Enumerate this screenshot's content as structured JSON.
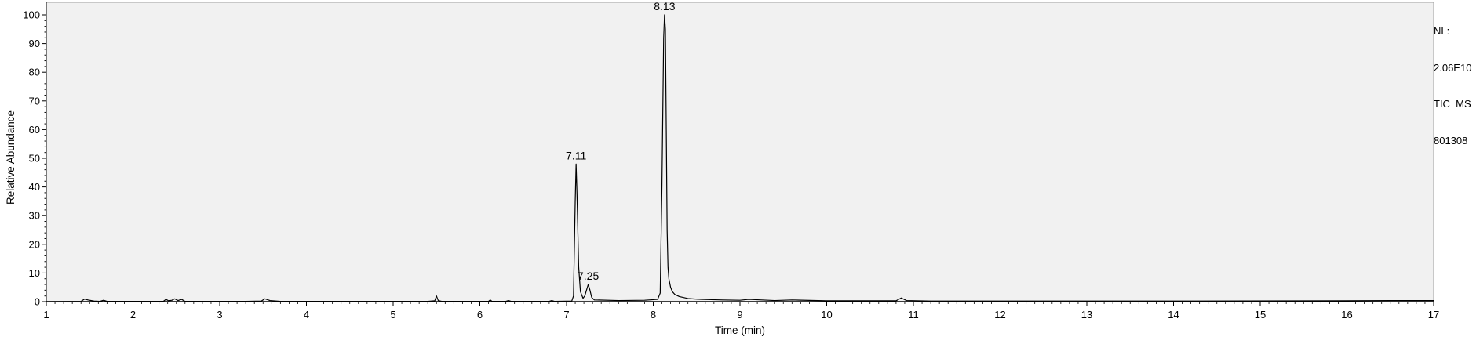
{
  "chart_data": {
    "type": "line",
    "xlabel": "Time (min)",
    "ylabel": "Relative Abundance",
    "xlim": [
      1,
      17
    ],
    "ylim": [
      0,
      100
    ],
    "x_ticks": [
      1,
      2,
      3,
      4,
      5,
      6,
      7,
      8,
      9,
      10,
      11,
      12,
      13,
      14,
      15,
      16,
      17
    ],
    "y_ticks": [
      0,
      10,
      20,
      30,
      40,
      50,
      60,
      70,
      80,
      90,
      100
    ],
    "grid": false,
    "background": "#f1f1f1",
    "line_color": "#000000",
    "peak_labels": [
      {
        "text": "7.11",
        "x": 7.11,
        "y": 48
      },
      {
        "text": "7.25",
        "x": 7.25,
        "y": 6
      },
      {
        "text": "8.13",
        "x": 8.13,
        "y": 100
      }
    ],
    "series": [
      {
        "x": [
          1.0,
          1.4,
          1.44,
          1.48,
          1.55,
          1.62,
          1.66,
          1.7,
          2.0,
          2.35,
          2.38,
          2.41,
          2.45,
          2.48,
          2.52,
          2.56,
          2.6,
          3.3,
          3.48,
          3.52,
          3.58,
          3.7,
          5.4,
          5.48,
          5.5,
          5.52,
          5.56,
          6.1,
          6.12,
          6.14,
          6.3,
          6.33,
          6.36,
          6.8,
          6.83,
          6.86,
          7.06,
          7.08,
          7.1,
          7.11,
          7.12,
          7.14,
          7.16,
          7.19,
          7.21,
          7.23,
          7.25,
          7.27,
          7.29,
          7.32,
          7.6,
          7.9,
          8.05,
          8.08,
          8.1,
          8.12,
          8.13,
          8.14,
          8.15,
          8.16,
          8.17,
          8.18,
          8.2,
          8.22,
          8.25,
          8.3,
          8.4,
          8.55,
          8.8,
          9.0,
          9.1,
          9.4,
          9.6,
          10.0,
          10.8,
          10.86,
          10.92,
          11.2,
          12.0,
          14.0,
          16.0,
          16.5,
          17.0
        ],
        "y": [
          0.0,
          0.1,
          0.9,
          0.6,
          0.2,
          0.1,
          0.5,
          0.1,
          0.1,
          0.1,
          0.8,
          0.3,
          0.5,
          1.0,
          0.4,
          0.8,
          0.1,
          0.1,
          0.2,
          1.0,
          0.4,
          0.1,
          0.1,
          0.3,
          2.0,
          0.4,
          0.1,
          0.1,
          0.6,
          0.1,
          0.1,
          0.4,
          0.1,
          0.1,
          0.4,
          0.1,
          0.2,
          2.0,
          35.0,
          48.0,
          38.0,
          12.0,
          3.5,
          1.2,
          2.0,
          4.0,
          6.0,
          4.0,
          1.5,
          0.6,
          0.4,
          0.5,
          0.8,
          3.0,
          40.0,
          92.0,
          100.0,
          95.0,
          60.0,
          25.0,
          12.0,
          8.0,
          5.0,
          3.5,
          2.5,
          1.8,
          1.1,
          0.8,
          0.6,
          0.5,
          0.8,
          0.4,
          0.6,
          0.3,
          0.3,
          1.3,
          0.4,
          0.2,
          0.2,
          0.2,
          0.3,
          0.4,
          0.4
        ]
      }
    ]
  },
  "side_info": [
    "NL:",
    "2.06E10",
    "TIC  MS",
    "801308"
  ]
}
